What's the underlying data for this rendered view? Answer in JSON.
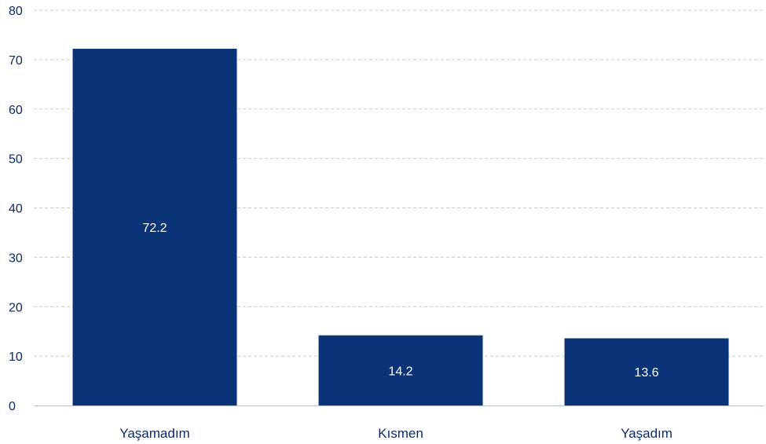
{
  "chart_data": {
    "type": "bar",
    "categories": [
      "Yaşamadım",
      "Kısmen",
      "Yaşadım"
    ],
    "values": [
      72.2,
      14.2,
      13.6
    ],
    "data_labels": [
      "72.2",
      "14.2",
      "13.6"
    ],
    "title": "",
    "xlabel": "",
    "ylabel": "",
    "ylim": [
      0,
      80
    ],
    "yticks": [
      "0",
      "10",
      "20",
      "30",
      "40",
      "50",
      "60",
      "70",
      "80"
    ],
    "grid": true,
    "legend": "none"
  },
  "colors": {
    "bar": "#0b3478",
    "text": "#0a2a6e",
    "grid": "#c7cbd6",
    "axis": "#b9bfcc",
    "bar_label": "#ffffff"
  }
}
